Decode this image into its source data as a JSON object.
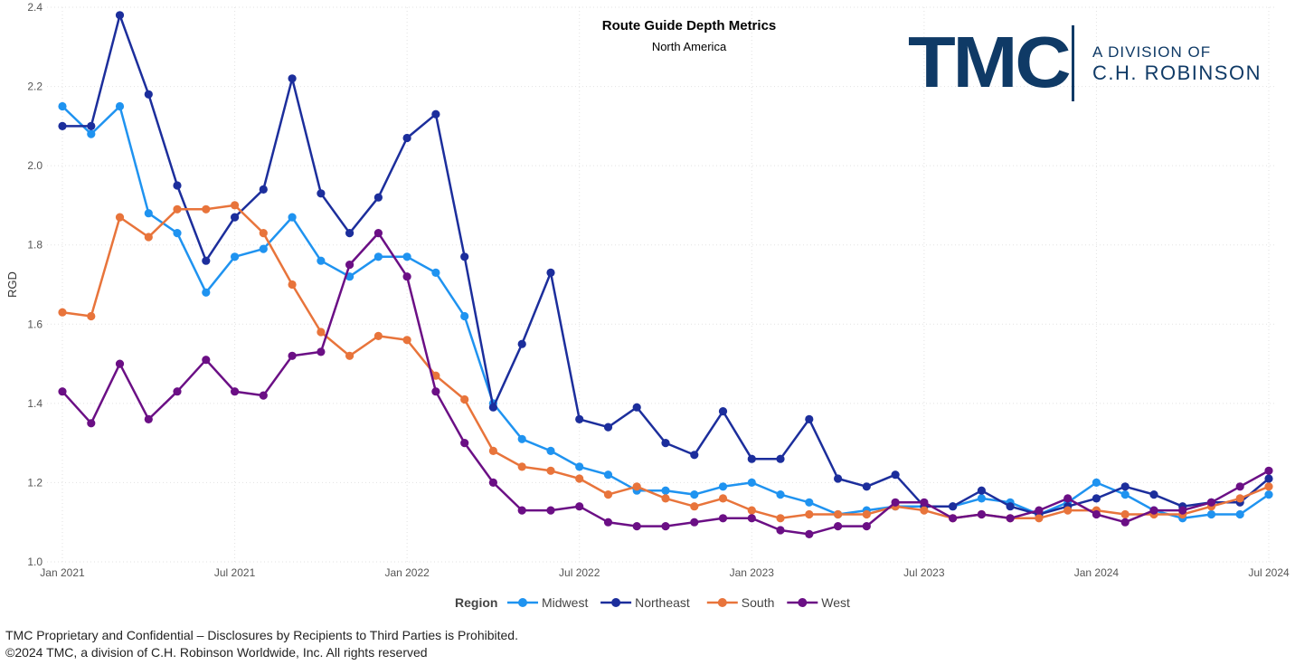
{
  "chart_data": {
    "type": "line",
    "title": "Route Guide Depth Metrics",
    "subtitle": "North America",
    "xlabel": "",
    "ylabel": "RGD",
    "ylim": [
      1.0,
      2.4
    ],
    "yticks": [
      "1.0",
      "1.2",
      "1.4",
      "1.6",
      "1.8",
      "2.0",
      "2.2",
      "2.4"
    ],
    "x_start": "Jan 2021",
    "x_end": "Jul 2024",
    "xticks": [
      "Jan 2021",
      "Jul 2021",
      "Jan 2022",
      "Jul 2022",
      "Jan 2023",
      "Jul 2023",
      "Jan 2024",
      "Jul 2024"
    ],
    "grid": true,
    "legend": {
      "title": "Region",
      "position": "bottom-center"
    },
    "series": [
      {
        "name": "Midwest",
        "color": "#1f93f0",
        "values": [
          2.15,
          2.08,
          2.15,
          1.88,
          1.83,
          1.68,
          1.77,
          1.79,
          1.87,
          1.76,
          1.72,
          1.77,
          1.77,
          1.73,
          1.62,
          1.4,
          1.31,
          1.28,
          1.24,
          1.22,
          1.18,
          1.18,
          1.17,
          1.19,
          1.2,
          1.17,
          1.15,
          1.12,
          1.13,
          1.14,
          1.14,
          1.14,
          1.16,
          1.15,
          1.12,
          1.15,
          1.2,
          1.17,
          1.13,
          1.11,
          1.12,
          1.12,
          1.17
        ]
      },
      {
        "name": "Northeast",
        "color": "#1c2e9c",
        "values": [
          2.1,
          2.1,
          2.38,
          2.18,
          1.95,
          1.76,
          1.87,
          1.94,
          2.22,
          1.93,
          1.83,
          1.92,
          2.07,
          2.13,
          1.77,
          1.39,
          1.55,
          1.73,
          1.36,
          1.34,
          1.39,
          1.3,
          1.27,
          1.38,
          1.26,
          1.26,
          1.36,
          1.21,
          1.19,
          1.22,
          1.14,
          1.14,
          1.18,
          1.14,
          1.12,
          1.14,
          1.16,
          1.19,
          1.17,
          1.14,
          1.15,
          1.15,
          1.21
        ]
      },
      {
        "name": "South",
        "color": "#e8743b",
        "values": [
          1.63,
          1.62,
          1.87,
          1.82,
          1.89,
          1.89,
          1.9,
          1.83,
          1.7,
          1.58,
          1.52,
          1.57,
          1.56,
          1.47,
          1.41,
          1.28,
          1.24,
          1.23,
          1.21,
          1.17,
          1.19,
          1.16,
          1.14,
          1.16,
          1.13,
          1.11,
          1.12,
          1.12,
          1.12,
          1.14,
          1.13,
          1.11,
          1.12,
          1.11,
          1.11,
          1.13,
          1.13,
          1.12,
          1.12,
          1.12,
          1.14,
          1.16,
          1.19
        ]
      },
      {
        "name": "West",
        "color": "#6b0f85",
        "values": [
          1.43,
          1.35,
          1.5,
          1.36,
          1.43,
          1.51,
          1.43,
          1.42,
          1.52,
          1.53,
          1.75,
          1.83,
          1.72,
          1.43,
          1.3,
          1.2,
          1.13,
          1.13,
          1.14,
          1.1,
          1.09,
          1.09,
          1.1,
          1.11,
          1.11,
          1.08,
          1.07,
          1.09,
          1.09,
          1.15,
          1.15,
          1.11,
          1.12,
          1.11,
          1.13,
          1.16,
          1.12,
          1.1,
          1.13,
          1.13,
          1.15,
          1.19,
          1.23
        ]
      }
    ]
  },
  "logo": {
    "mark": "TMC",
    "line1": "A DIVISION OF",
    "line2": "C.H. ROBINSON"
  },
  "footer": {
    "line1": "TMC Proprietary and Confidential – Disclosures by Recipients to Third Parties is Prohibited.",
    "line2": "©2024 TMC, a division of C.H. Robinson Worldwide, Inc. All rights reserved"
  }
}
